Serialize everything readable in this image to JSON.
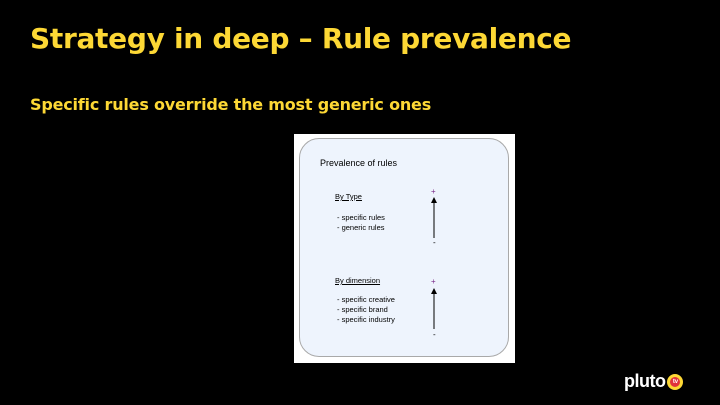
{
  "slide": {
    "title": "Strategy in deep – Rule prevalence",
    "subtitle": "Specific rules override the most generic ones"
  },
  "figure": {
    "title": "Prevalence of rules",
    "by_type": {
      "heading": "By Type",
      "items": [
        "- specific rules",
        "- generic rules"
      ],
      "plus": "+",
      "minus": "-"
    },
    "by_dimension": {
      "heading": "By dimension",
      "items": [
        "- specific creative",
        "- specific brand",
        "- specific industry"
      ],
      "plus": "+",
      "minus": "-"
    }
  },
  "logo": {
    "text": "pluto",
    "badge": "tv"
  },
  "colors": {
    "background": "#000000",
    "title": "#fdd835",
    "panel": "#eef4fd",
    "plus": "#7a2a8a"
  }
}
